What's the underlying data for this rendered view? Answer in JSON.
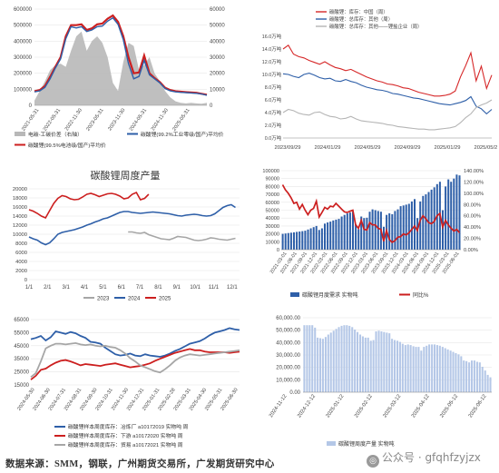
{
  "chart_data": [
    {
      "id": "p1",
      "type": "line",
      "title": "",
      "x_ticks": [
        "2021-05-31",
        "2021-08-31",
        "2021-11-30",
        "2022-02-28",
        "2022-05-31",
        "2022-08-31",
        "2022-11-30",
        "2023-02-28",
        "2023-05-31",
        "2023-08-31",
        "2023-11-30",
        "2024-02-29",
        "2024-05-31",
        "2024-08-31",
        "2024-11-30",
        "2025-02-28",
        "2025-05-31"
      ],
      "x_tick_labels": [
        "2021-05-31",
        "2022-05-31",
        "2022-11-30",
        "2023-05-31",
        "2023-11-30",
        "2024-05-31",
        "2024-11-30",
        "2025-05-31"
      ],
      "left_axis": {
        "ticks": [
          0,
          100000,
          200000,
          300000,
          400000,
          500000,
          600000
        ]
      },
      "right_axis": {
        "ticks": [
          0,
          10000,
          20000,
          30000,
          40000,
          50000,
          60000
        ]
      },
      "series": [
        {
          "name": "电碳-工碳价差（右轴）",
          "kind": "area",
          "axis": "right",
          "color": "#b8b8b8",
          "values": [
            3000,
            9000,
            15000,
            22000,
            25000,
            26000,
            24000,
            34000,
            43000,
            46000,
            34000,
            40000,
            43000,
            39000,
            30000,
            14000,
            9000,
            27000,
            39000,
            37000,
            22000,
            25000,
            30000,
            20000,
            15000,
            9000,
            5000,
            2500,
            1500,
            1200,
            1500,
            1200,
            1000,
            1500
          ]
        },
        {
          "name": "碳酸锂(99.5%电池级/国产)平均价",
          "kind": "line",
          "axis": "left",
          "color": "#cc1f1f",
          "values": [
            88000,
            95000,
            120000,
            178000,
            240000,
            300000,
            430000,
            500000,
            500000,
            505000,
            470000,
            480000,
            505000,
            510000,
            540000,
            560000,
            520000,
            430000,
            300000,
            200000,
            205000,
            310000,
            200000,
            170000,
            145000,
            110000,
            95000,
            88000,
            85000,
            82000,
            80000,
            78000,
            72000,
            66000
          ]
        },
        {
          "name": "碳酸锂(99.2%工业零级/国产)平均价",
          "kind": "line",
          "axis": "left",
          "color": "#2e5fa8",
          "values": [
            84000,
            90000,
            112000,
            166000,
            232000,
            290000,
            415000,
            490000,
            482000,
            490000,
            460000,
            470000,
            490000,
            494000,
            525000,
            545000,
            505000,
            410000,
            260000,
            165000,
            180000,
            280000,
            190000,
            165000,
            140000,
            105000,
            90000,
            84000,
            81000,
            79000,
            77000,
            75000,
            70000,
            63000
          ]
        }
      ],
      "legend": [
        "电碳-工碳价差（右轴）",
        "碳酸锂(99.2%工业零级/国产)平均价",
        "碳酸锂(99.5%电池级/国产)平均价"
      ]
    },
    {
      "id": "p2",
      "type": "line",
      "title": "",
      "x_tick_labels": [
        "2023/09/29",
        "2024/01/29",
        "2024/05/29",
        "2024/09/29",
        "2025/01/29",
        "2025/05/29"
      ],
      "y_ticks": [
        "0.0万吨",
        "2.0万吨",
        "4.0万吨",
        "6.0万吨",
        "8.0万吨",
        "10.0万吨",
        "12.0万吨",
        "14.0万吨",
        "16.0万吨"
      ],
      "ylim": [
        0,
        16
      ],
      "series": [
        {
          "name": "碳酸锂：库存：中国（周）",
          "color": "#d62728",
          "values": [
            14,
            14.6,
            13.2,
            12.8,
            12.6,
            12.2,
            11.9,
            11.6,
            12.0,
            11.5,
            11.1,
            10.9,
            10.6,
            10.8,
            10.4,
            10.0,
            9.6,
            9.3,
            9.0,
            8.8,
            8.5,
            8.4,
            8.2,
            7.9,
            7.8,
            7.5,
            7.2,
            7.0,
            6.8,
            6.6,
            6.6,
            6.7,
            6.9,
            7.4,
            9.6,
            11.4,
            13.4,
            9.0,
            11.3,
            7.8,
            9.9
          ]
        },
        {
          "name": "碳酸锂：总库存：其他（周）",
          "color": "#2e5fa8",
          "values": [
            10.1,
            10.0,
            9.7,
            9.5,
            10.0,
            10.2,
            9.9,
            9.5,
            9.3,
            9.4,
            9.0,
            8.9,
            9.2,
            8.9,
            8.7,
            8.3,
            8.0,
            7.8,
            7.6,
            7.5,
            7.3,
            7.0,
            6.9,
            6.7,
            6.5,
            6.3,
            6.2,
            6.0,
            5.8,
            5.6,
            5.4,
            5.3,
            5.2,
            5.4,
            5.6,
            5.9,
            6.5,
            5.0,
            4.6,
            3.8,
            4.5
          ]
        },
        {
          "name": "碳酸锂：总库存：其他——锂盐企业（周）",
          "color": "#b5b5b5",
          "values": [
            4.0,
            4.5,
            4.3,
            3.9,
            3.7,
            3.6,
            4.0,
            4.1,
            3.7,
            3.4,
            3.3,
            3.0,
            3.1,
            3.4,
            3.0,
            2.7,
            2.6,
            2.5,
            2.4,
            2.3,
            2.1,
            2.0,
            1.8,
            1.7,
            1.6,
            1.5,
            1.4,
            1.4,
            1.3,
            1.3,
            1.4,
            1.5,
            1.6,
            1.8,
            2.4,
            3.2,
            3.8,
            4.8,
            5.2,
            5.5,
            6.0
          ]
        }
      ],
      "legend": [
        "碳酸锂：库存：中国（周）",
        "碳酸锂：总库存：其他（周）",
        "碳酸锂：总库存：其他——锂盐企业（周）"
      ]
    },
    {
      "id": "p3",
      "type": "line",
      "title": "碳酸锂周度产量",
      "x_tick_labels": [
        "1/1",
        "2/1",
        "3/1",
        "4/1",
        "5/1",
        "6/1",
        "7/1",
        "8/1",
        "9/1",
        "10/1",
        "11/1",
        "12/1"
      ],
      "ylim": [
        0,
        20000
      ],
      "y_ticks": [
        0,
        2000,
        4000,
        6000,
        8000,
        10000,
        12000,
        14000,
        16000,
        18000,
        20000
      ],
      "series": [
        {
          "name": "2023",
          "color": "#a6a6a6",
          "start_week": 24,
          "values": [
            10500,
            10500,
            10300,
            10200,
            10400,
            9900,
            9600,
            9300,
            9000,
            8900,
            8800,
            9100,
            9500,
            9400,
            9300,
            9000,
            8700,
            8600,
            8700,
            8900,
            9200,
            9100,
            8900,
            8800,
            8700,
            8900,
            9100
          ]
        },
        {
          "name": "2024",
          "color": "#2e5fa8",
          "start_week": 0,
          "values": [
            9400,
            9000,
            8700,
            8100,
            7700,
            8100,
            9000,
            10000,
            10400,
            10600,
            10800,
            11000,
            11300,
            11600,
            12000,
            12300,
            12700,
            13000,
            13400,
            13600,
            14000,
            14400,
            14800,
            15000,
            15000,
            14800,
            14700,
            14600,
            14700,
            14800,
            14900,
            14800,
            14700,
            14600,
            14500,
            14300,
            14100,
            14000,
            14200,
            14300,
            14400,
            14300,
            14100,
            14000,
            14100,
            14500,
            15200,
            15900,
            16300,
            16500,
            15900
          ]
        },
        {
          "name": "2025",
          "color": "#cc1f1f",
          "start_week": 0,
          "values": [
            15400,
            15100,
            14600,
            14000,
            13600,
            15200,
            16800,
            17900,
            18500,
            18300,
            17800,
            17600,
            17700,
            18200,
            18800,
            19000,
            18700,
            18300,
            18600,
            18900,
            19000,
            18800,
            18400,
            17800,
            18000,
            18800,
            19200,
            17600,
            17900,
            18800
          ]
        }
      ],
      "legend": [
        "2023",
        "2024",
        "2025"
      ]
    },
    {
      "id": "p4",
      "type": "bar",
      "title": "",
      "x_tick_labels": [
        "2021-03-01",
        "2021-06-01",
        "2021-09-01",
        "2021-12-01",
        "2022-03-01",
        "2022-06-01",
        "2022-09-01",
        "2022-12-01",
        "2023-03-01",
        "2023-06-01",
        "2023-09-01",
        "2023-12-01",
        "2024-03-01",
        "2024-06-01",
        "2024-09-01",
        "2024-12-01",
        "2025-03-01",
        "2025-06-01"
      ],
      "left_axis": {
        "ticks": [
          0,
          10000,
          20000,
          30000,
          40000,
          50000,
          60000,
          70000,
          80000,
          90000,
          100000
        ]
      },
      "right_axis": {
        "ticks": [
          "0.00%",
          "20.00%",
          "40.00%",
          "60.00%",
          "80.00%",
          "100.00%",
          "120.00%",
          "140.00%"
        ],
        "min": 0,
        "max": 140
      },
      "series": [
        {
          "name": "碳酸锂月度需求 实物吨",
          "kind": "bar",
          "color": "#2e5fa8",
          "values": [
            20000,
            20500,
            21000,
            21500,
            22000,
            22500,
            23000,
            23500,
            24000,
            25500,
            27000,
            28500,
            30000,
            25000,
            27000,
            33000,
            34500,
            35500,
            37000,
            38000,
            39000,
            42000,
            44000,
            46000,
            47000,
            48000,
            32000,
            26000,
            42000,
            40000,
            40500,
            48000,
            51000,
            50000,
            49000,
            48000,
            29000,
            44000,
            46000,
            45000,
            49000,
            51000,
            55000,
            56000,
            57000,
            58000,
            61000,
            64000,
            40000,
            61000,
            68000,
            70000,
            73000,
            76000,
            79000,
            83000,
            86000,
            50000,
            80000,
            89000,
            86000,
            90000,
            95000,
            94000
          ]
        },
        {
          "name": "同比%",
          "kind": "line",
          "axis": "right",
          "color": "#cc1f1f",
          "values": [
            115,
            106,
            100,
            92,
            82,
            84,
            72,
            80,
            70,
            62,
            70,
            73,
            86,
            58,
            66,
            75,
            72,
            77,
            76,
            82,
            77,
            72,
            67,
            66,
            68,
            70,
            44,
            38,
            52,
            36,
            35,
            48,
            44,
            44,
            38,
            36,
            15,
            34,
            18,
            13,
            16,
            22,
            23,
            28,
            26,
            30,
            36,
            42,
            34,
            52,
            60,
            55,
            48,
            46,
            50,
            60,
            64,
            40,
            52,
            44,
            38,
            33,
            36,
            30
          ]
        }
      ],
      "legend": [
        "碳酸锂月度需求 实物吨",
        "同比%"
      ]
    },
    {
      "id": "p5",
      "type": "line",
      "title": "",
      "x_tick_labels": [
        "2024-05-30",
        "2024-06-30",
        "2024-07-31",
        "2024-08-31",
        "2024-09-30",
        "2024-10-31",
        "2024-11-30",
        "2024-12-31",
        "2025-01-31",
        "2025-02-28",
        "2025-03-31",
        "2025-04-30",
        "2025-05-31",
        "2025-06-30"
      ],
      "y_ticks": [
        15000,
        25000,
        35000,
        45000,
        55000,
        65000
      ],
      "ylim": [
        15000,
        65000
      ],
      "series": [
        {
          "name": "碳酸锂样本周度库存：冶炼厂 a10172019 实物吨 周",
          "color": "#2e5fa8",
          "values": [
            50000,
            51000,
            52500,
            49000,
            51500,
            56000,
            55000,
            54000,
            55500,
            54500,
            52500,
            51000,
            48000,
            47500,
            46500,
            43500,
            41000,
            38500,
            37500,
            38000,
            39000,
            37500,
            37000,
            38500,
            37500,
            37000,
            36500,
            37500,
            39000,
            41000,
            42500,
            44500,
            46500,
            47500,
            48500,
            50500,
            53000,
            55000,
            56000,
            57000,
            58500,
            57500,
            57000
          ]
        },
        {
          "name": "碳酸锂样本周度库存：下游 a10172020 实物吨 周",
          "color": "#cc1f1f",
          "values": [
            19000,
            22000,
            26500,
            27500,
            30000,
            32000,
            33500,
            34000,
            33000,
            31500,
            30000,
            31000,
            30500,
            30000,
            29500,
            30500,
            31000,
            31500,
            30500,
            29500,
            28500,
            29000,
            29500,
            30500,
            31500,
            33500,
            35000,
            36500,
            38000,
            39500,
            40500,
            41500,
            42500,
            41500,
            41500,
            40500,
            40000,
            40000,
            40000,
            40000,
            39500,
            40000,
            40500
          ]
        },
        {
          "name": "碳酸锂样本周度库存：贸易 a10172021 实物吨 周",
          "color": "#a6a6a6",
          "values": [
            21000,
            24000,
            33000,
            43000,
            45000,
            46500,
            46500,
            46000,
            46500,
            47000,
            46000,
            45500,
            46000,
            45000,
            44500,
            45000,
            44000,
            43500,
            41500,
            39000,
            35500,
            33000,
            30000,
            28500,
            27000,
            25500,
            24500,
            27000,
            30000,
            33500,
            36000,
            37500,
            38500,
            38000,
            37500,
            38000,
            38500,
            39000,
            39500,
            40000,
            40500,
            41000,
            41500
          ]
        }
      ],
      "legend": [
        "碳酸锂样本周度库存：冶炼厂 a10172019 实物吨 周",
        "碳酸锂样本周度库存：下游 a10172020 实物吨 周",
        "碳酸锂样本周度库存：贸易 a10172021 实物吨 周"
      ]
    },
    {
      "id": "p6",
      "type": "bar",
      "title": "",
      "x_tick_labels": [
        "2024-11-12",
        "2024-12-12",
        "2025-01-12",
        "2025-02-12",
        "2025-03-12",
        "2025-04-12",
        "2025-05-12",
        "2025-06-12"
      ],
      "y_ticks": [
        "0.00",
        "10,000.00",
        "20,000.00",
        "30,000.00",
        "40,000.00",
        "50,000.00",
        "60,000.00"
      ],
      "ylim": [
        0,
        60000
      ],
      "series": [
        {
          "name": "碳酸锂周度产量 实物吨",
          "kind": "bar",
          "color": "#b4c7e7",
          "values": [
            54000,
            54000,
            54000,
            54000,
            52000,
            44000,
            43500,
            43000,
            44500,
            46500,
            48000,
            49500,
            51000,
            52500,
            53500,
            54000,
            54000,
            53500,
            52500,
            50500,
            48500,
            46500,
            45000,
            44000,
            44000,
            41500,
            42000,
            49000,
            49500,
            49000,
            48500,
            48000,
            47500,
            43000,
            42000,
            41500,
            40500,
            39000,
            38000,
            38500,
            38000,
            37000,
            36500,
            36500,
            33500,
            36500,
            37500,
            38500,
            38500,
            38500,
            38000,
            37500,
            36500,
            35500,
            34500,
            33500,
            32500,
            31500,
            30500,
            29000,
            25500,
            25000,
            24000,
            25500,
            25500,
            24500,
            24000,
            20500,
            17500,
            14000,
            12000
          ]
        }
      ],
      "legend": [
        "碳酸锂周度产量 实物吨"
      ]
    }
  ],
  "footer": {
    "source": "数据来源：SMM，钢联，广州期货交易所，广发期货研究中心"
  },
  "watermark": {
    "text": "公众号 · gfqhfzyjzx"
  }
}
